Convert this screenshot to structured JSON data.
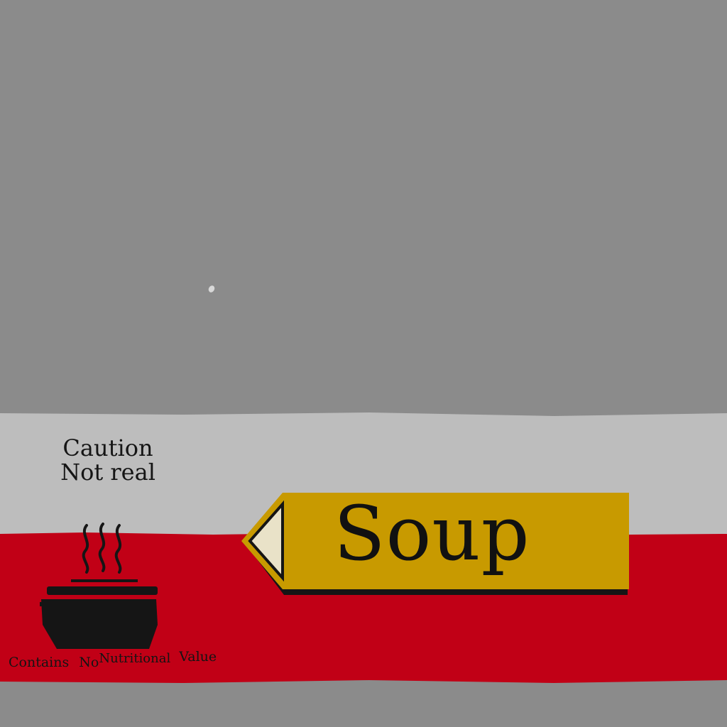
{
  "caution": {
    "line1": "Caution",
    "line2": "Not real"
  },
  "label": {
    "product": "Soup"
  },
  "nutrition": {
    "word1": "Contains",
    "word2": "No",
    "word3": "Nutritional",
    "word4": "Value"
  },
  "icons": {
    "pot": "steaming-soup-pot-icon",
    "tag": "arrow-tag-icon"
  },
  "colors": {
    "background": "#8b8b8b",
    "light_band": "#bdbdbd",
    "red_band": "#c10016",
    "tag_gold": "#c89a00",
    "ink": "#151515"
  }
}
